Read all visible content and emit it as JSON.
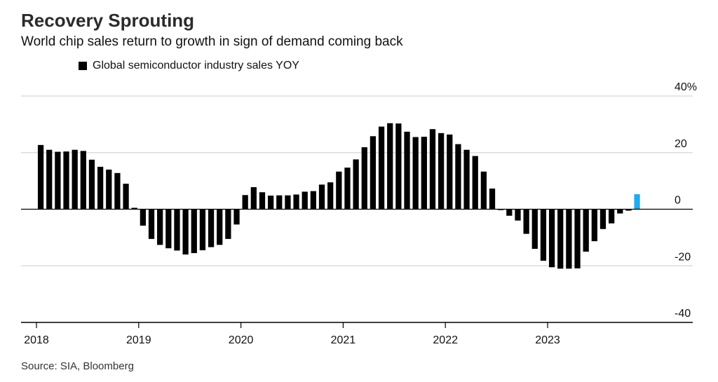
{
  "chart_data": {
    "type": "bar",
    "title": "Recovery Sprouting",
    "subtitle": "World chip sales return to growth in sign of demand coming back",
    "legend": [
      {
        "label": "Global semiconductor industry sales YOY",
        "color": "#000000"
      }
    ],
    "source": "Source: SIA, Bloomberg",
    "ylabel": "",
    "xlabel": "",
    "ylim": [
      -40,
      40
    ],
    "y_ticks": [
      {
        "value": 40,
        "label": "40%"
      },
      {
        "value": 20,
        "label": "20"
      },
      {
        "value": 0,
        "label": "0"
      },
      {
        "value": -20,
        "label": "-20"
      },
      {
        "value": -40,
        "label": "-40"
      }
    ],
    "x_ticks": [
      "2018",
      "2019",
      "2020",
      "2021",
      "2022",
      "2023"
    ],
    "start_year": 2018,
    "x_range_months": [
      0,
      74
    ],
    "bar_color": "#000000",
    "highlight_color": "#22aaee",
    "highlight_index": 70,
    "values": [
      22.7,
      21.0,
      20.3,
      20.4,
      21.0,
      20.6,
      17.5,
      15.0,
      14.0,
      12.8,
      9.0,
      0.5,
      -5.8,
      -10.5,
      -12.6,
      -13.8,
      -14.6,
      -16.0,
      -15.5,
      -14.5,
      -13.4,
      -12.6,
      -10.5,
      -5.4,
      5.0,
      7.8,
      6.0,
      4.8,
      4.9,
      4.9,
      5.2,
      6.2,
      6.4,
      8.7,
      9.5,
      13.3,
      14.7,
      17.6,
      21.9,
      25.8,
      29.2,
      30.4,
      30.3,
      27.4,
      25.5,
      25.6,
      28.3,
      26.9,
      26.4,
      23.0,
      21.0,
      18.8,
      13.3,
      7.3,
      -0.3,
      -2.3,
      -4.0,
      -8.7,
      -14.0,
      -18.2,
      -20.5,
      -21.0,
      -21.0,
      -20.9,
      -15.0,
      -11.3,
      -7.0,
      -5.0,
      -1.5,
      -0.5,
      5.3
    ]
  }
}
